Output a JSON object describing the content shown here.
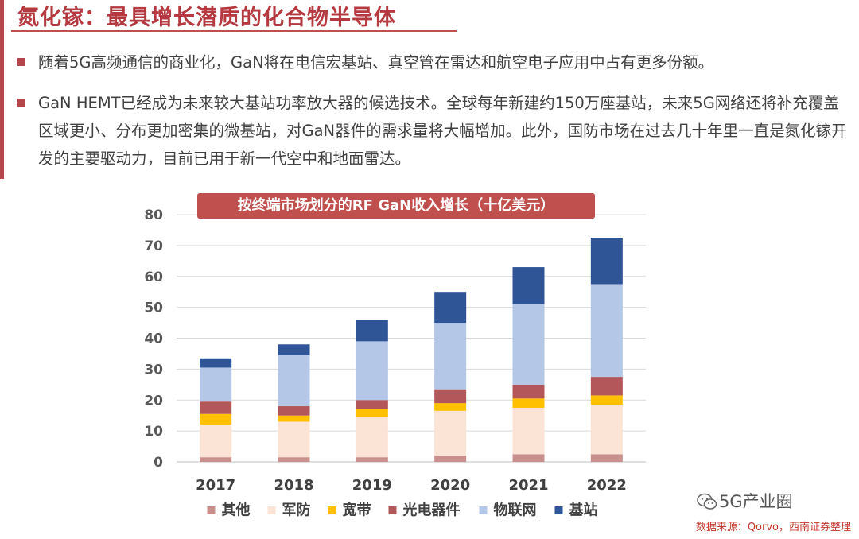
{
  "header": {
    "title": "氮化镓：最具增长潜质的化合物半导体"
  },
  "bullets": [
    "随着5G高频通信的商业化，GaN将在电信宏基站、真空管在雷达和航空电子应用中占有更多份额。",
    "GaN HEMT已经成为未来较大基站功率放大器的候选技术。全球每年新建约150万座基站，未来5G网络还将补充覆盖区域更小、分布更加密集的微基站，对GaN器件的需求量将大幅增加。此外，国防市场在过去几十年里一直是氮化镓开发的主要驱动力，目前已用于新一代空中和地面雷达。"
  ],
  "chart_data": {
    "type": "bar",
    "stacked": true,
    "title": "按终端市场划分的RF GaN收入增长（十亿美元）",
    "categories": [
      "2017",
      "2018",
      "2019",
      "2020",
      "2021",
      "2022"
    ],
    "ylim": [
      0,
      80
    ],
    "yticks": [
      0,
      10,
      20,
      30,
      40,
      50,
      60,
      70,
      80
    ],
    "grid": true,
    "legend_position": "bottom",
    "series": [
      {
        "name": "其他",
        "color": "#c98f8d",
        "values": [
          1.5,
          1.5,
          1.5,
          2.0,
          2.5,
          2.5
        ]
      },
      {
        "name": "军防",
        "color": "#fbe4d6",
        "values": [
          10.5,
          11.5,
          13.0,
          14.5,
          15.0,
          16.0
        ]
      },
      {
        "name": "宽带",
        "color": "#ffc000",
        "values": [
          3.5,
          2.0,
          2.5,
          2.5,
          3.0,
          3.0
        ]
      },
      {
        "name": "光电器件",
        "color": "#b4575a",
        "values": [
          4.0,
          3.0,
          3.0,
          4.5,
          4.5,
          6.0
        ]
      },
      {
        "name": "物联网",
        "color": "#b4c7e7",
        "values": [
          11.0,
          16.5,
          19.0,
          21.5,
          26.0,
          30.0
        ]
      },
      {
        "name": "基站",
        "color": "#2f5597",
        "values": [
          3.0,
          3.5,
          7.0,
          10.0,
          12.0,
          15.0
        ]
      }
    ]
  },
  "footer": {
    "source": "数据来源：Qorvo，西南证券整理",
    "watermark": "5G产业圈"
  }
}
